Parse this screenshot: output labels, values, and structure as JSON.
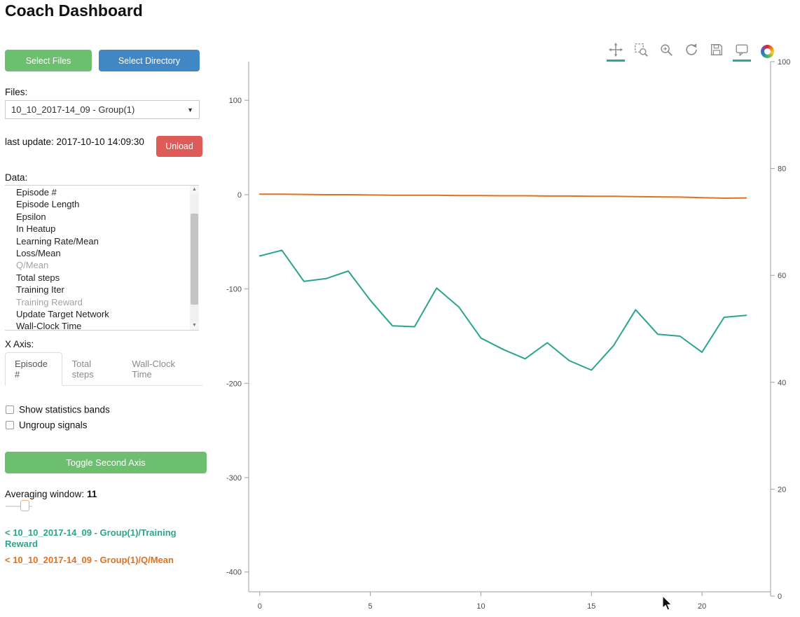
{
  "title": "Coach Dashboard",
  "sidebar": {
    "select_files_label": "Select Files",
    "select_directory_label": "Select Directory",
    "files_label": "Files:",
    "files_dropdown": {
      "selected": "10_10_2017-14_09 - Group(1)"
    },
    "last_update": "last update: 2017-10-10 14:09:30",
    "unload_label": "Unload",
    "data_label": "Data:",
    "data_list": {
      "items": [
        {
          "label": "Episode #",
          "muted": false
        },
        {
          "label": "Episode Length",
          "muted": false
        },
        {
          "label": "Epsilon",
          "muted": false
        },
        {
          "label": "In Heatup",
          "muted": false
        },
        {
          "label": "Learning Rate/Mean",
          "muted": false
        },
        {
          "label": "Loss/Mean",
          "muted": false
        },
        {
          "label": "Q/Mean",
          "muted": true
        },
        {
          "label": "Total steps",
          "muted": false
        },
        {
          "label": "Training Iter",
          "muted": false
        },
        {
          "label": "Training Reward",
          "muted": true
        },
        {
          "label": "Update Target Network",
          "muted": false
        },
        {
          "label": "Wall-Clock Time",
          "muted": false
        }
      ]
    },
    "x_axis_label": "X Axis:",
    "x_axis_tabs": [
      {
        "label": "Episode #",
        "active": true
      },
      {
        "label": "Total steps",
        "active": false
      },
      {
        "label": "Wall-Clock Time",
        "active": false
      }
    ],
    "checkboxes": [
      {
        "label": "Show statistics bands",
        "checked": false
      },
      {
        "label": "Ungroup signals",
        "checked": false
      }
    ],
    "toggle_second_axis_label": "Toggle Second Axis",
    "averaging_window_label": "Averaging window:",
    "averaging_window_value": "11",
    "legend": [
      {
        "label": "< 10_10_2017-14_09 - Group(1)/Training Reward",
        "color": "#2fa38c"
      },
      {
        "label": "< 10_10_2017-14_09 - Group(1)/Q/Mean",
        "color": "#e4701e"
      }
    ]
  },
  "toolbar": {
    "tools": [
      {
        "name": "pan-tool",
        "active": true
      },
      {
        "name": "box-zoom-tool",
        "active": false
      },
      {
        "name": "wheel-zoom-tool",
        "active": false
      },
      {
        "name": "reset-tool",
        "active": false
      },
      {
        "name": "save-tool",
        "active": false
      },
      {
        "name": "hover-tool",
        "active": true
      }
    ]
  },
  "chart_data": {
    "type": "line",
    "title": "",
    "xlabel": "",
    "ylabel": "",
    "grid": false,
    "legend_position": "none",
    "x_axis": {
      "ticks": [
        0,
        5,
        10,
        15,
        20
      ],
      "range": [
        -0.5,
        23.1
      ]
    },
    "y_axis_left": {
      "ticks": [
        100,
        0,
        -100,
        -200,
        -300,
        -400
      ],
      "range": [
        -421,
        141
      ]
    },
    "y_axis_right": {
      "ticks": [
        100,
        80,
        60,
        40,
        20,
        0
      ],
      "range": [
        0.8,
        100
      ]
    },
    "series": [
      {
        "name": "10_10_2017-14_09 - Group(1)/Training Reward",
        "color": "#2aa48e",
        "axis": "left",
        "x": [
          0,
          1,
          2,
          3,
          4,
          5,
          6,
          7,
          8,
          9,
          10,
          11,
          12,
          13,
          14,
          15,
          16,
          17,
          18,
          19,
          20,
          21,
          22
        ],
        "y": [
          -65,
          -59,
          -92,
          -89,
          -81,
          -112,
          -139,
          -140,
          -99,
          -119,
          -152,
          -164,
          -174,
          -157,
          -176,
          -186,
          -160,
          -122,
          -148,
          -150,
          -167,
          -130,
          -128
        ]
      },
      {
        "name": "10_10_2017-14_09 - Group(1)/Q/Mean",
        "color": "#e4701e",
        "axis": "right",
        "x": [
          0,
          1,
          2,
          3,
          4,
          5,
          6,
          7,
          8,
          9,
          10,
          11,
          12,
          13,
          14,
          15,
          16,
          17,
          18,
          19,
          20,
          21,
          22
        ],
        "y": [
          75.2,
          75.2,
          75.15,
          75.1,
          75.1,
          75.05,
          75.0,
          75.0,
          75.0,
          74.95,
          74.95,
          74.9,
          74.9,
          74.85,
          74.85,
          74.8,
          74.8,
          74.75,
          74.7,
          74.65,
          74.55,
          74.45,
          74.5
        ]
      }
    ]
  }
}
